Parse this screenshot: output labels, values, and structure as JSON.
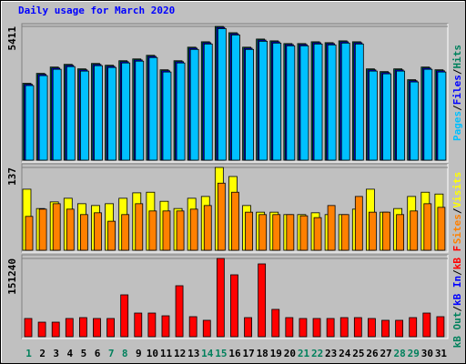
{
  "legend_separator": "/",
  "chart_data": [
    {
      "type": "bar",
      "title": "Daily usage for March 2020",
      "ylim": [
        0,
        5411
      ],
      "yticks": [
        5411
      ],
      "series": [
        {
          "name": "Hits",
          "color": "#00805c",
          "values": [
            3108,
            3510,
            3766,
            3875,
            3693,
            3912,
            3839,
            4022,
            4095,
            4241,
            3656,
            4022,
            4570,
            4789,
            5411,
            5155,
            4570,
            4899,
            4826,
            4716,
            4716,
            4789,
            4753,
            4826,
            4789,
            3693,
            3583,
            3693,
            3254,
            3766,
            3656
          ]
        },
        {
          "name": "Files",
          "color": "#0000ff",
          "values": [
            3068,
            3470,
            3726,
            3835,
            3653,
            3872,
            3799,
            3982,
            4055,
            4201,
            3616,
            3982,
            4530,
            4749,
            5371,
            5115,
            4530,
            4859,
            4786,
            4676,
            4676,
            4749,
            4713,
            4786,
            4749,
            3653,
            3543,
            3653,
            3214,
            3726,
            3616
          ]
        },
        {
          "name": "Pages",
          "color": "#00c0ff",
          "values": [
            3018,
            3420,
            3676,
            3785,
            3603,
            3822,
            3749,
            3932,
            4005,
            4151,
            3566,
            3932,
            4480,
            4699,
            5321,
            5065,
            4480,
            4809,
            4736,
            4626,
            4626,
            4699,
            4663,
            4736,
            4699,
            3603,
            3493,
            3603,
            3164,
            3676,
            3566
          ]
        }
      ]
    },
    {
      "type": "bar",
      "ylim": [
        0,
        137
      ],
      "yticks": [
        137
      ],
      "series": [
        {
          "name": "Visits",
          "color": "#ffff00",
          "values": [
            101,
            69,
            80,
            86,
            77,
            74,
            77,
            86,
            95,
            96,
            81,
            69,
            86,
            89,
            137,
            122,
            74,
            63,
            63,
            59,
            59,
            62,
            59,
            59,
            68,
            101,
            63,
            69,
            89,
            96,
            93
          ]
        },
        {
          "name": "Sites",
          "color": "#ff8000",
          "values": [
            56,
            68,
            77,
            68,
            59,
            62,
            48,
            59,
            77,
            65,
            65,
            65,
            68,
            74,
            111,
            96,
            63,
            59,
            59,
            59,
            57,
            54,
            74,
            59,
            89,
            63,
            63,
            59,
            65,
            77,
            71
          ]
        }
      ]
    },
    {
      "type": "bar",
      "ylim": [
        0,
        151240
      ],
      "yticks": [
        151240
      ],
      "categories": [
        "1",
        "2",
        "3",
        "4",
        "5",
        "6",
        "7",
        "8",
        "9",
        "10",
        "11",
        "12",
        "13",
        "14",
        "15",
        "16",
        "17",
        "18",
        "19",
        "20",
        "21",
        "22",
        "23",
        "24",
        "25",
        "26",
        "27",
        "28",
        "29",
        "30",
        "31"
      ],
      "label_colors": [
        "#00805c",
        "#000000",
        "#000000",
        "#000000",
        "#000000",
        "#000000",
        "#00805c",
        "#00805c",
        "#000000",
        "#000000",
        "#000000",
        "#000000",
        "#000000",
        "#00805c",
        "#00805c",
        "#000000",
        "#000000",
        "#000000",
        "#000000",
        "#000000",
        "#00805c",
        "#00805c",
        "#000000",
        "#000000",
        "#000000",
        "#000000",
        "#000000",
        "#00805c",
        "#00805c",
        "#000000",
        "#000000"
      ],
      "series": [
        {
          "name": "kB F",
          "color": "#ff0000",
          "values": [
            35200,
            28100,
            28100,
            35200,
            36900,
            35200,
            35200,
            80900,
            45700,
            45700,
            40400,
            98500,
            38700,
            31700,
            151240,
            119600,
            36900,
            140700,
            52800,
            36900,
            35200,
            35200,
            35200,
            36900,
            36900,
            35200,
            31700,
            31700,
            36900,
            45700,
            38700
          ]
        },
        {
          "name": "kB In",
          "color": "#0000ff"
        },
        {
          "name": "kB Out",
          "color": "#00805c"
        }
      ]
    }
  ]
}
